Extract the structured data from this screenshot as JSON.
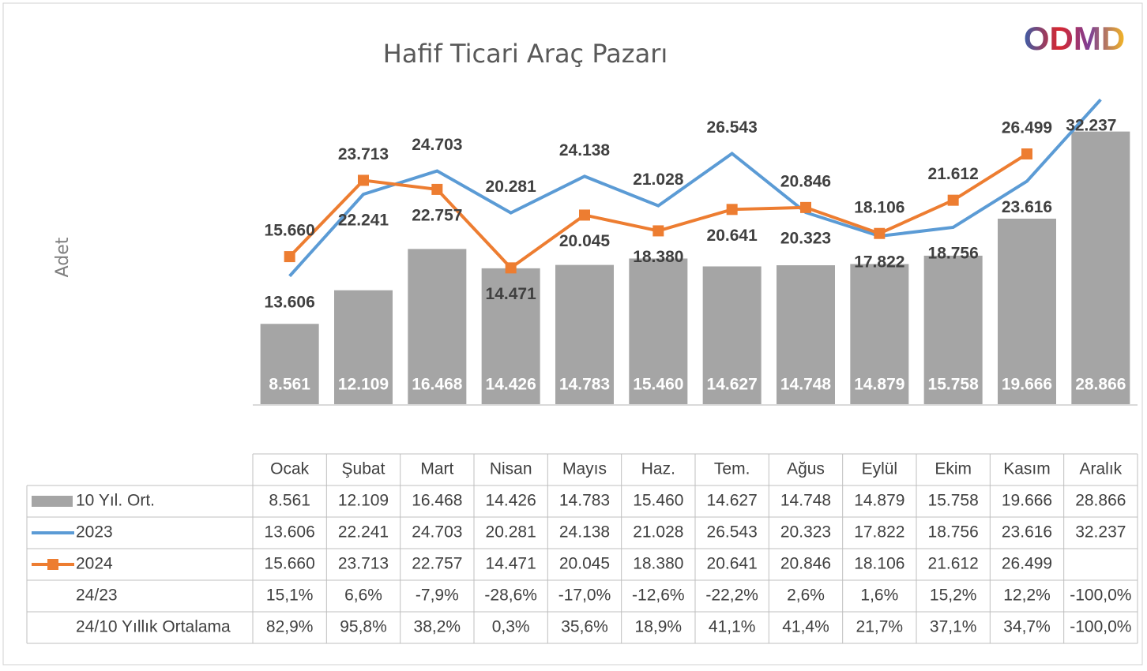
{
  "chart_data": {
    "type": "bar_line",
    "title": "Hafif Ticari Araç Pazarı",
    "logo": "ODMD",
    "y_label": "Adet",
    "categories": [
      "Ocak",
      "Şubat",
      "Mart",
      "Nisan",
      "Mayıs",
      "Haz.",
      "Tem.",
      "Ağus",
      "Eylül",
      "Ekim",
      "Kasım",
      "Aralık"
    ],
    "ylim": [
      0,
      35000
    ],
    "series": [
      {
        "name": "10 Yıl. Ort.",
        "type": "bar",
        "color": "#a5a5a5",
        "values": [
          8561,
          12109,
          16468,
          14426,
          14783,
          15460,
          14627,
          14748,
          14879,
          15758,
          19666,
          28866
        ],
        "value_labels": [
          "8.561",
          "12.109",
          "16.468",
          "14.426",
          "14.783",
          "15.460",
          "14.627",
          "14.748",
          "14.879",
          "15.758",
          "19.666",
          "28.866"
        ]
      },
      {
        "name": "2023",
        "type": "line",
        "color": "#5b9bd5",
        "values": [
          13606,
          22241,
          24703,
          20281,
          24138,
          21028,
          26543,
          20323,
          17822,
          18756,
          23616,
          32237
        ],
        "value_labels": [
          "13.606",
          "22.241",
          "24.703",
          "20.281",
          "24.138",
          "21.028",
          "26.543",
          "20.323",
          "17.822",
          "18.756",
          "23.616",
          "32.237"
        ]
      },
      {
        "name": "2024",
        "type": "line",
        "color": "#ed7d31",
        "values": [
          15660,
          23713,
          22757,
          14471,
          20045,
          18380,
          20641,
          20846,
          18106,
          21612,
          26499,
          null
        ],
        "value_labels": [
          "15.660",
          "23.713",
          "22.757",
          "14.471",
          "20.045",
          "18.380",
          "20.641",
          "20.846",
          "18.106",
          "21.612",
          "26.499",
          null
        ]
      }
    ],
    "ratio_rows": [
      {
        "name": "24/23",
        "cells": [
          "15,1%",
          "6,6%",
          "-7,9%",
          "-28,6%",
          "-17,0%",
          "-12,6%",
          "-22,2%",
          "2,6%",
          "1,6%",
          "15,2%",
          "12,2%",
          "-100,0%"
        ]
      },
      {
        "name": "24/10 Yıllık Ortalama",
        "cells": [
          "82,9%",
          "95,8%",
          "38,2%",
          "0,3%",
          "35,6%",
          "18,9%",
          "41,1%",
          "41,4%",
          "21,7%",
          "37,1%",
          "34,7%",
          "-100,0%"
        ]
      }
    ]
  }
}
